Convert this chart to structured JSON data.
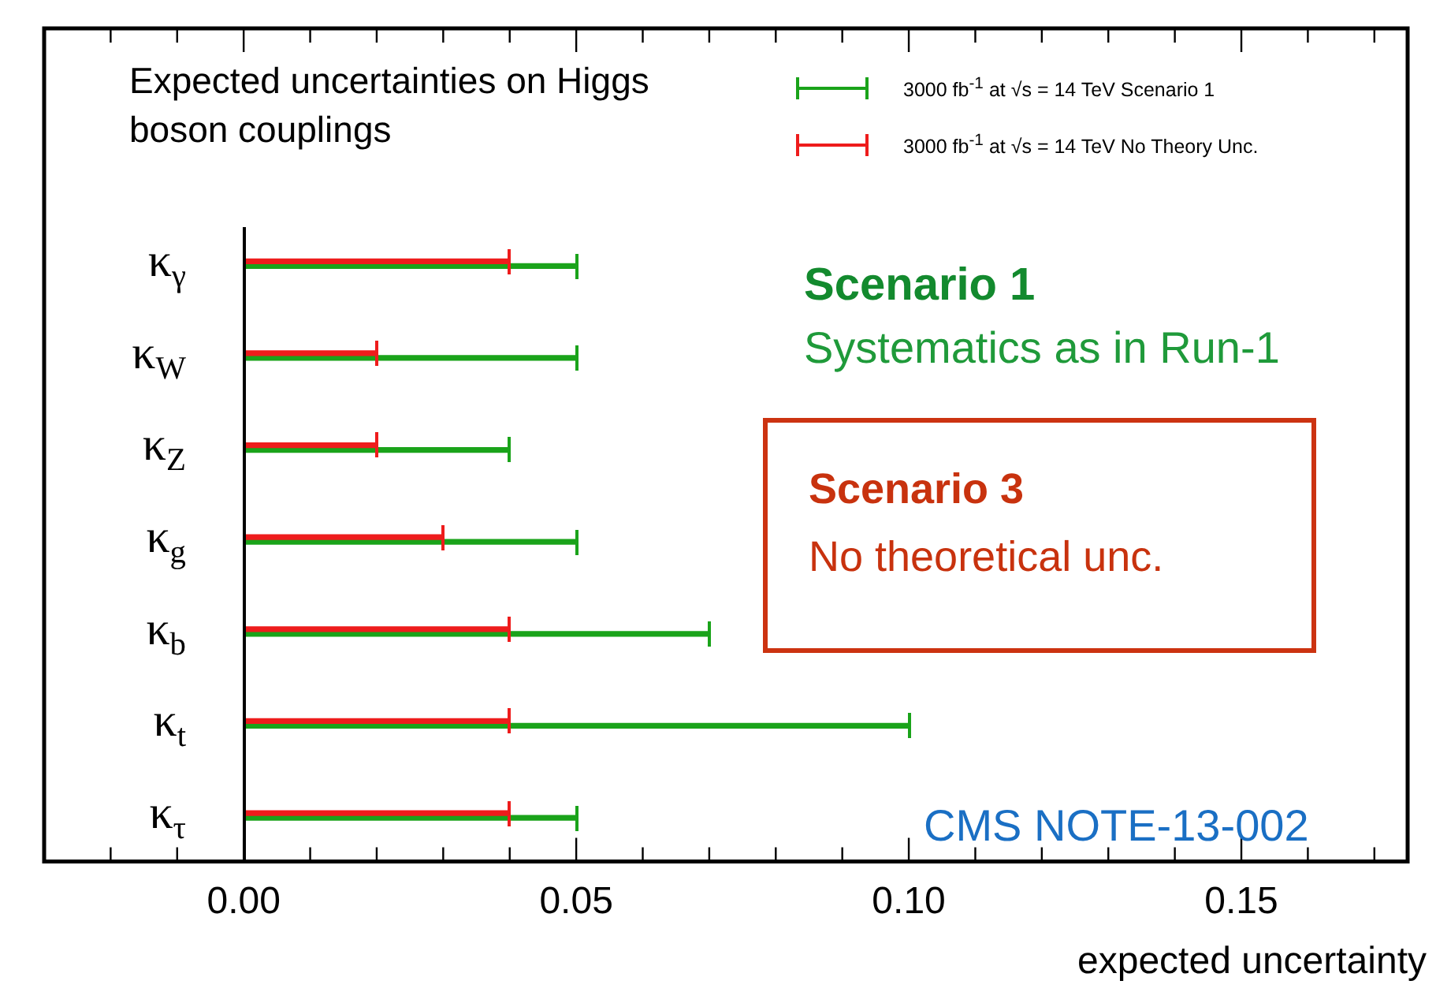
{
  "chart_data": {
    "type": "bar",
    "orientation": "horizontal",
    "title": "Expected uncertainties on Higgs boson couplings",
    "xlabel": "expected uncertainty",
    "categories": [
      "κ$_{γ}$",
      "κ$_{W}$",
      "κ$_{Z}$",
      "κ$_{g}$",
      "κ$_{b}$",
      "κ$_{t}$",
      "κ$_{τ}$"
    ],
    "series": [
      {
        "name": "3000 fb$^{-1}$ at √s = 14 TeV Scenario 1",
        "color": "#1aa31a",
        "values": [
          0.05,
          0.05,
          0.04,
          0.05,
          0.07,
          0.1,
          0.05
        ]
      },
      {
        "name": "3000 fb$^{-1}$ at √s = 14 TeV No Theory Unc.",
        "color": "#ee1c1c",
        "values": [
          0.04,
          0.02,
          0.02,
          0.03,
          0.04,
          0.04,
          0.04
        ]
      }
    ],
    "xlim": [
      -0.03,
      0.175
    ],
    "xticks": [
      {
        "value": -0.02,
        "label": null
      },
      {
        "value": -0.01,
        "label": null
      },
      {
        "value": 0,
        "label": "0.00"
      },
      {
        "value": 0.01,
        "label": null
      },
      {
        "value": 0.02,
        "label": null
      },
      {
        "value": 0.03,
        "label": null
      },
      {
        "value": 0.04,
        "label": null
      },
      {
        "value": 0.05,
        "label": "0.05"
      },
      {
        "value": 0.06,
        "label": null
      },
      {
        "value": 0.07,
        "label": null
      },
      {
        "value": 0.08,
        "label": null
      },
      {
        "value": 0.09,
        "label": null
      },
      {
        "value": 0.1,
        "label": "0.10"
      },
      {
        "value": 0.11,
        "label": null
      },
      {
        "value": 0.12,
        "label": null
      },
      {
        "value": 0.13,
        "label": null
      },
      {
        "value": 0.14,
        "label": null
      },
      {
        "value": 0.15,
        "label": "0.15"
      },
      {
        "value": 0.16,
        "label": null
      },
      {
        "value": 0.17,
        "label": null
      }
    ],
    "legend": "top right",
    "grid": false,
    "annotations": [
      "Scenario 1",
      "Systematics as in Run-1",
      "Scenario 3",
      "No theoretical unc.",
      "CMS NOTE-13-002"
    ]
  }
}
